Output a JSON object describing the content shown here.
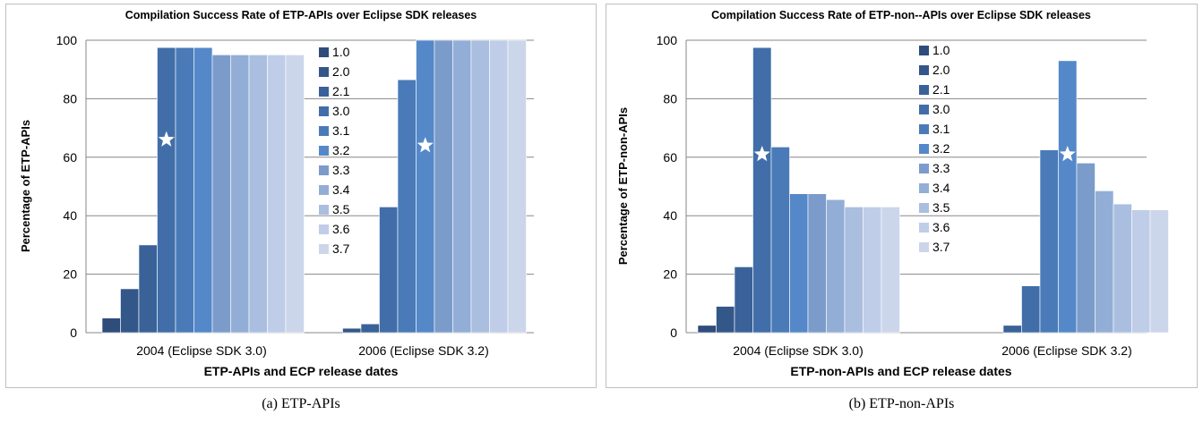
{
  "colors": {
    "series": [
      "#2e4d7b",
      "#34578a",
      "#3a6299",
      "#416ea9",
      "#4a7bb8",
      "#5588c9",
      "#7b9ccb",
      "#93aed6",
      "#aabee0",
      "#bfcde8",
      "#ccd6ea"
    ],
    "grid": "#878787",
    "axis": "#878787",
    "star": "#ffffff"
  },
  "chart_data": [
    {
      "type": "bar",
      "title": "Compilation Success Rate of ETP-APIs over Eclipse SDK releases",
      "xlabel": "ETP-APIs and ECP release dates",
      "ylabel": "Percentage of ETP-APIs",
      "ylim": [
        0,
        100
      ],
      "yticks": [
        "0",
        "20",
        "40",
        "60",
        "80",
        "100"
      ],
      "grid": true,
      "legend_position": "inside-center",
      "categories": [
        "2004 (Eclipse SDK 3.0)",
        "2006 (Eclipse SDK 3.2)"
      ],
      "series": [
        {
          "name": "1.0",
          "values": [
            5,
            0
          ]
        },
        {
          "name": "2.0",
          "values": [
            15,
            1.5
          ]
        },
        {
          "name": "2.1",
          "values": [
            30,
            3
          ]
        },
        {
          "name": "3.0",
          "values": [
            97.5,
            43
          ]
        },
        {
          "name": "3.1",
          "values": [
            97.5,
            86.5
          ]
        },
        {
          "name": "3.2",
          "values": [
            97.5,
            100
          ]
        },
        {
          "name": "3.3",
          "values": [
            95,
            100
          ]
        },
        {
          "name": "3.4",
          "values": [
            95,
            100
          ]
        },
        {
          "name": "3.5",
          "values": [
            95,
            100
          ]
        },
        {
          "name": "3.6",
          "values": [
            95,
            100
          ]
        },
        {
          "name": "3.7",
          "values": [
            95,
            100
          ]
        }
      ],
      "star_markers": [
        {
          "category": "2004 (Eclipse SDK 3.0)",
          "series": "3.0",
          "y": 66
        },
        {
          "category": "2006 (Eclipse SDK 3.2)",
          "series": "3.2",
          "y": 64
        }
      ]
    },
    {
      "type": "bar",
      "title": "Compilation Success Rate of ETP-non--APIs over Eclipse SDK releases",
      "xlabel": "ETP-non-APIs and ECP release dates",
      "ylabel": "Percentage of ETP-non-APIs",
      "ylim": [
        0,
        100
      ],
      "yticks": [
        "0",
        "20",
        "40",
        "60",
        "80",
        "100"
      ],
      "grid": true,
      "legend_position": "inside-center",
      "categories": [
        "2004 (Eclipse SDK 3.0)",
        "2006 (Eclipse SDK 3.2)"
      ],
      "series": [
        {
          "name": "1.0",
          "values": [
            2.5,
            0
          ]
        },
        {
          "name": "2.0",
          "values": [
            9,
            0
          ]
        },
        {
          "name": "2.1",
          "values": [
            22.5,
            2.5
          ]
        },
        {
          "name": "3.0",
          "values": [
            97.5,
            16
          ]
        },
        {
          "name": "3.1",
          "values": [
            63.5,
            62.5
          ]
        },
        {
          "name": "3.2",
          "values": [
            47.5,
            93
          ]
        },
        {
          "name": "3.3",
          "values": [
            47.5,
            58
          ]
        },
        {
          "name": "3.4",
          "values": [
            45.5,
            48.5
          ]
        },
        {
          "name": "3.5",
          "values": [
            43,
            44
          ]
        },
        {
          "name": "3.6",
          "values": [
            43,
            42
          ]
        },
        {
          "name": "3.7",
          "values": [
            43,
            42
          ]
        }
      ],
      "star_markers": [
        {
          "category": "2004 (Eclipse SDK 3.0)",
          "series": "3.0",
          "y": 61
        },
        {
          "category": "2006 (Eclipse SDK 3.2)",
          "series": "3.2",
          "y": 61
        }
      ]
    }
  ],
  "captions": [
    "(a) ETP-APIs",
    "(b) ETP-non-APIs"
  ]
}
